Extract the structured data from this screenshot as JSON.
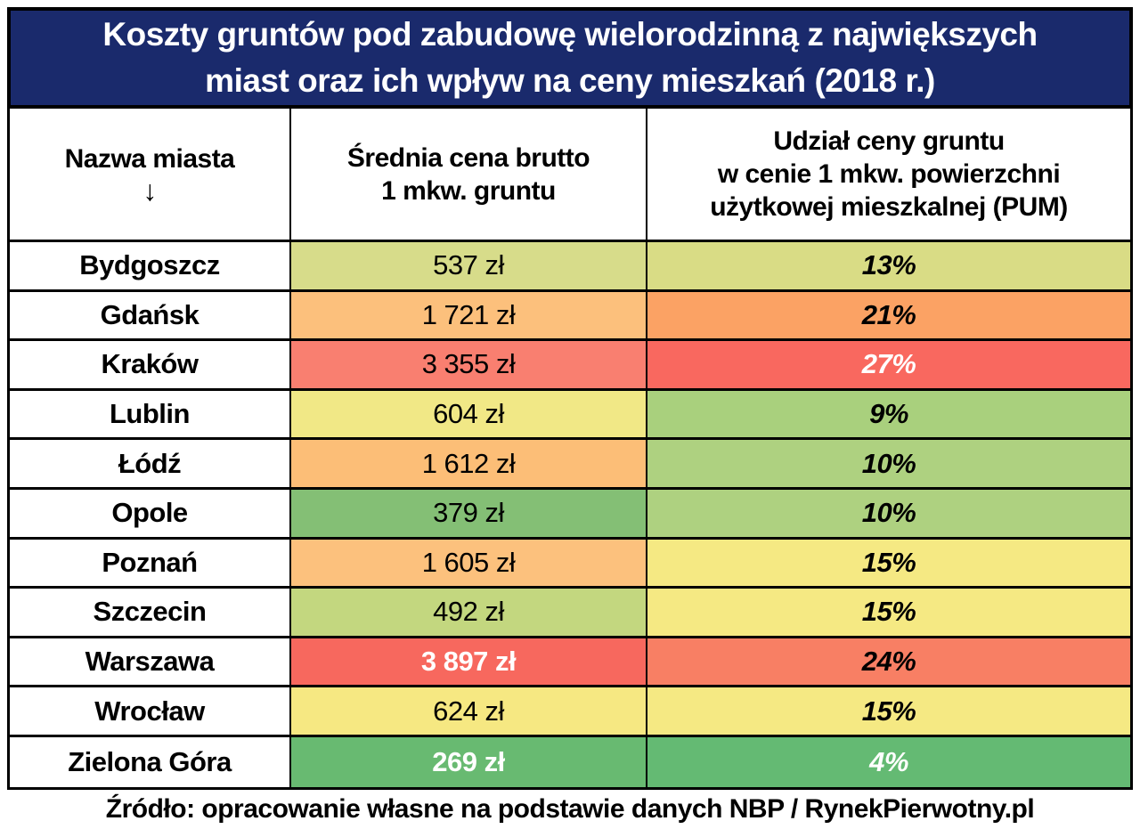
{
  "title": {
    "text": "Koszty gruntów pod zabudowę wielorodzinną z największych\nmiast oraz ich wpływ na ceny mieszkań (2018 r.)"
  },
  "colors": {
    "title_bg": "#1a2a6c",
    "title_text": "#ffffff",
    "border": "#000000",
    "low_green": "#68ba71",
    "high_red": "#f7685e"
  },
  "table": {
    "col1_header": "Nazwa miasta",
    "col1_arrow": "↓",
    "col2_header": "Średnia cena brutto\n1 mkw. gruntu",
    "col3_header": "Udział ceny gruntu\nw cenie 1 mkw. powierzchni\nużytkowej mieszkalnej (PUM)",
    "rows": [
      {
        "city": "Bydgoszcz",
        "price": "537 zł",
        "share": "13%",
        "price_bg": "#d7dc8a",
        "share_bg": "#d9dc85",
        "price_white_bold": false,
        "share_white": false
      },
      {
        "city": "Gdańsk",
        "price": "1 721 zł",
        "share": "21%",
        "price_bg": "#fcc07c",
        "share_bg": "#fba264",
        "price_white_bold": false,
        "share_white": false
      },
      {
        "city": "Kraków",
        "price": "3 355 zł",
        "share": "27%",
        "price_bg": "#f97f70",
        "share_bg": "#f9685f",
        "price_white_bold": false,
        "share_white": true
      },
      {
        "city": "Lublin",
        "price": "604 zł",
        "share": "9%",
        "price_bg": "#f1e886",
        "share_bg": "#a9d07d",
        "price_white_bold": false,
        "share_white": false
      },
      {
        "city": "Łódź",
        "price": "1 612 zł",
        "share": "10%",
        "price_bg": "#fcbe77",
        "share_bg": "#aed180",
        "price_white_bold": false,
        "share_white": false
      },
      {
        "city": "Opole",
        "price": "379 zł",
        "share": "10%",
        "price_bg": "#84bf75",
        "share_bg": "#aed180",
        "price_white_bold": false,
        "share_white": false
      },
      {
        "city": "Poznań",
        "price": "1 605 zł",
        "share": "15%",
        "price_bg": "#fcc17d",
        "share_bg": "#f5e983",
        "price_white_bold": false,
        "share_white": false
      },
      {
        "city": "Szczecin",
        "price": "492 zł",
        "share": "15%",
        "price_bg": "#c3d77f",
        "share_bg": "#f5e983",
        "price_white_bold": false,
        "share_white": false
      },
      {
        "city": "Warszawa",
        "price": "3 897 zł",
        "share": "24%",
        "price_bg": "#f7685e",
        "share_bg": "#f87f64",
        "price_white_bold": true,
        "share_white": false
      },
      {
        "city": "Wrocław",
        "price": "624 zł",
        "share": "15%",
        "price_bg": "#f6e882",
        "share_bg": "#f5e983",
        "price_white_bold": false,
        "share_white": false
      },
      {
        "city": "Zielona Góra",
        "price": "269 zł",
        "share": "4%",
        "price_bg": "#68ba71",
        "share_bg": "#64ba73",
        "price_white_bold": true,
        "share_white": true
      }
    ]
  },
  "footer": {
    "source": "Źródło: opracowanie własne na podstawie danych NBP / RynekPierwotny.pl"
  },
  "chart_data": {
    "type": "table",
    "title": "Koszty gruntów pod zabudowę wielorodzinną z największych miast oraz ich wpływ na ceny mieszkań (2018 r.)",
    "columns": [
      "Nazwa miasta",
      "Średnia cena brutto 1 mkw. gruntu",
      "Udział ceny gruntu w cenie 1 mkw. powierzchni użytkowej mieszkalnej (PUM)"
    ],
    "categories": [
      "Bydgoszcz",
      "Gdańsk",
      "Kraków",
      "Lublin",
      "Łódź",
      "Opole",
      "Poznań",
      "Szczecin",
      "Warszawa",
      "Wrocław",
      "Zielona Góra"
    ],
    "series": [
      {
        "name": "Średnia cena brutto 1 mkw. gruntu (zł)",
        "values": [
          537,
          1721,
          3355,
          604,
          1612,
          379,
          1605,
          492,
          3897,
          624,
          269
        ]
      },
      {
        "name": "Udział ceny gruntu w cenie 1 mkw. PUM (%)",
        "values": [
          13,
          21,
          27,
          9,
          10,
          10,
          15,
          15,
          24,
          15,
          4
        ]
      }
    ],
    "rows": [
      [
        "Bydgoszcz",
        "537 zł",
        "13%"
      ],
      [
        "Gdańsk",
        "1 721 zł",
        "21%"
      ],
      [
        "Kraków",
        "3 355 zł",
        "27%"
      ],
      [
        "Lublin",
        "604 zł",
        "9%"
      ],
      [
        "Łódź",
        "1 612 zł",
        "10%"
      ],
      [
        "Opole",
        "379 zł",
        "10%"
      ],
      [
        "Poznań",
        "1 605 zł",
        "15%"
      ],
      [
        "Szczecin",
        "492 zł",
        "15%"
      ],
      [
        "Warszawa",
        "3 897 zł",
        "24%"
      ],
      [
        "Wrocław",
        "624 zł",
        "15%"
      ],
      [
        "Zielona Góra",
        "269 zł",
        "4%"
      ]
    ],
    "color_scale": "green (low) → yellow → orange → red (high)",
    "source": "Źródło: opracowanie własne na podstawie danych NBP / RynekPierwotny.pl"
  }
}
